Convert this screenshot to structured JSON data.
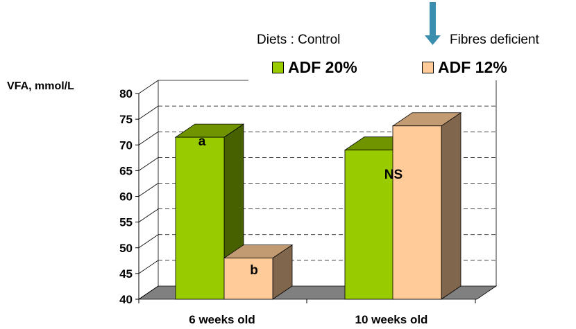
{
  "chart_data": {
    "type": "bar",
    "ylabel": "VFA, mmol/L",
    "ylim": [
      40,
      80
    ],
    "yticks": [
      40,
      45,
      50,
      55,
      60,
      65,
      70,
      75,
      80
    ],
    "categories": [
      "6 weeks old",
      "10 weeks old"
    ],
    "series": [
      {
        "name": "ADF 20%",
        "values": [
          71.5,
          69
        ]
      },
      {
        "name": "ADF 12%",
        "values": [
          48,
          73.7
        ]
      }
    ],
    "annotations": [
      "a",
      "b",
      "NS"
    ],
    "grid": true,
    "legend": {
      "title_left": "Diets : Control",
      "title_right": "Fibres deficient",
      "position": "top-right"
    }
  },
  "colors": {
    "series1_front": "#99cc00",
    "series1_side": "#476000",
    "series1_top": "#6f9400",
    "series2_front": "#ffcc99",
    "series2_side": "#80664d",
    "series2_top": "#c29b73",
    "floor": "#808080",
    "arrow": "#3b8fae"
  }
}
